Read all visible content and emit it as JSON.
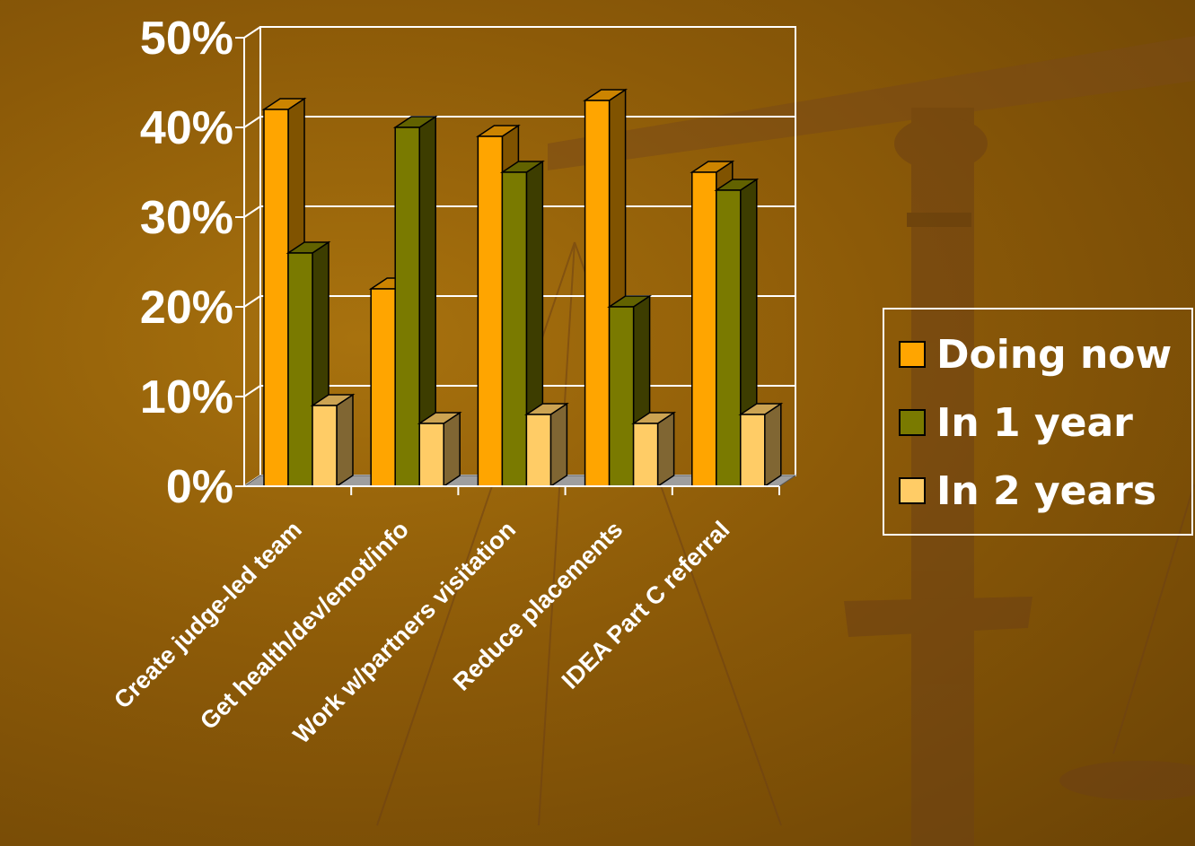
{
  "chart_data": {
    "type": "bar",
    "categories": [
      "Create judge-led team",
      "Get health/dev/emot/info",
      "Work w/partners visitation",
      "Reduce placements",
      "IDEA Part C referral"
    ],
    "series": [
      {
        "name": "Doing now",
        "values": [
          42,
          22,
          39,
          43,
          35
        ],
        "color": "#ffa500"
      },
      {
        "name": "In 1 year",
        "values": [
          26,
          40,
          35,
          20,
          33
        ],
        "color": "#7a7a00"
      },
      {
        "name": "In 2 years",
        "values": [
          9,
          7,
          8,
          7,
          8
        ],
        "color": "#ffcc66"
      }
    ],
    "y_ticks": [
      "0%",
      "10%",
      "20%",
      "30%",
      "40%",
      "50%"
    ],
    "ylim": [
      0,
      50
    ],
    "grid": true,
    "legend_position": "right"
  },
  "colors": {
    "background": "#8c5a08",
    "axis": "#ffffff",
    "text": "#ffffff",
    "floor": "#9e9e9e"
  }
}
